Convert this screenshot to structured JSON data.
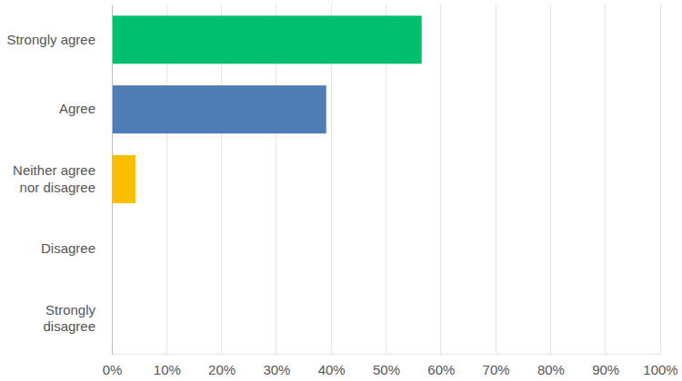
{
  "chart_data": {
    "type": "bar",
    "orientation": "horizontal",
    "categories": [
      "Strongly agree",
      "Agree",
      "Neither agree nor disagree",
      "Disagree",
      "Strongly disagree"
    ],
    "values": [
      56.5,
      39.1,
      4.3,
      0,
      0
    ],
    "colors": [
      "#00bf6f",
      "#507cb6",
      "#f9be00",
      "#6bc8cd",
      "#ff8b4f"
    ],
    "xlim": [
      0,
      100
    ],
    "xticks": [
      {
        "value": 0,
        "label": "0%"
      },
      {
        "value": 10,
        "label": "10%"
      },
      {
        "value": 20,
        "label": "20%"
      },
      {
        "value": 30,
        "label": "30%"
      },
      {
        "value": 40,
        "label": "40%"
      },
      {
        "value": 50,
        "label": "50%"
      },
      {
        "value": 60,
        "label": "60%"
      },
      {
        "value": 70,
        "label": "70%"
      },
      {
        "value": 80,
        "label": "80%"
      },
      {
        "value": 90,
        "label": "90%"
      },
      {
        "value": 100,
        "label": "100%"
      }
    ],
    "grid": true
  }
}
